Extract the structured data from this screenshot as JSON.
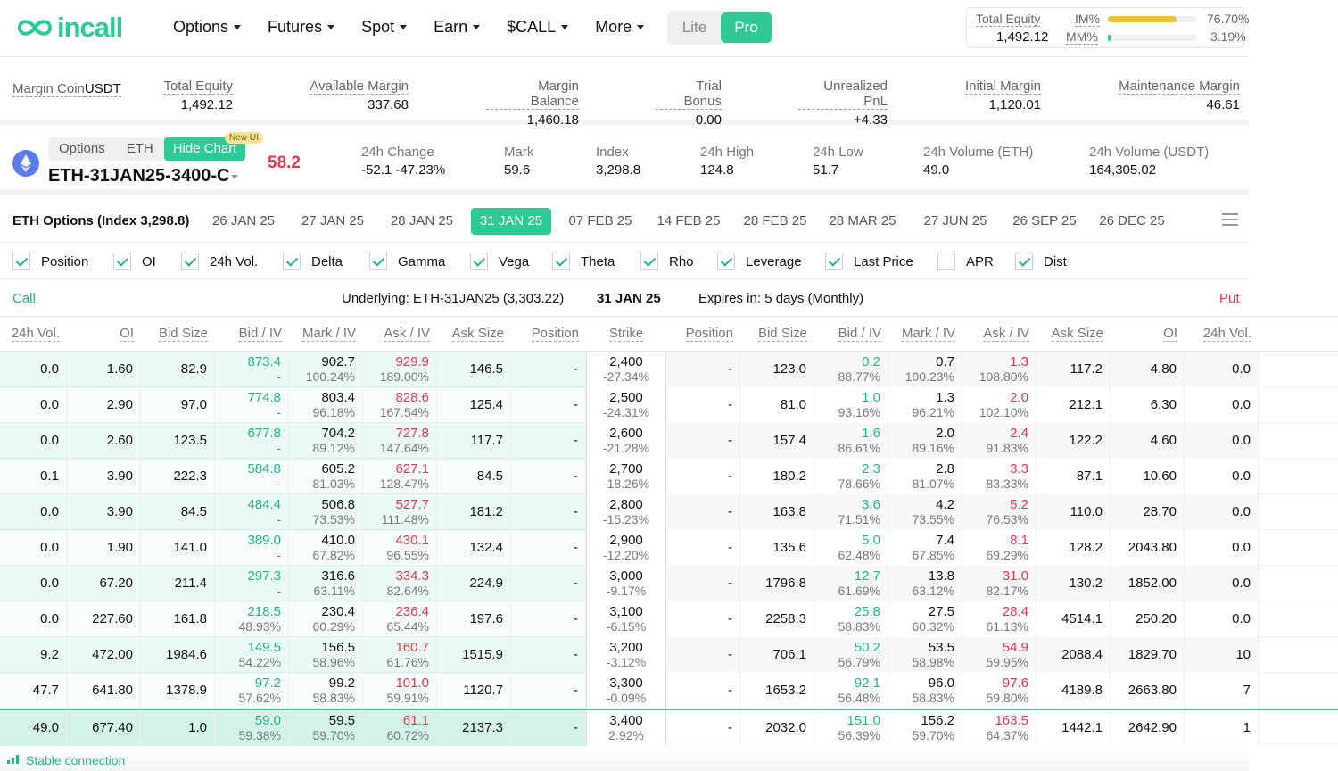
{
  "brand": {
    "logo_text": "incall",
    "accent": "#2ec997",
    "red": "#e03a4f"
  },
  "nav": [
    "Options",
    "Futures",
    "Spot",
    "Earn",
    "$CALL",
    "More"
  ],
  "mode": {
    "lite": "Lite",
    "pro": "Pro",
    "active": "Pro"
  },
  "equity_box": {
    "total_equity_label": "Total Equity",
    "total_equity": "1,492.12",
    "im_label": "IM%",
    "im_pct": "76.70%",
    "im_fraction": 0.767,
    "mm_label": "MM%",
    "mm_pct": "3.19%",
    "mm_fraction": 0.0319
  },
  "account": [
    {
      "label": "Margin Coin",
      "value": "USDT"
    },
    {
      "label": "Total Equity",
      "value": "1,492.12"
    },
    {
      "label": "Available Margin",
      "value": "337.68"
    },
    {
      "label": "Margin Balance",
      "value": "1,460.18"
    },
    {
      "label": "Trial Bonus",
      "value": "0.00"
    },
    {
      "label": "Unrealized PnL",
      "value": "+4.33"
    },
    {
      "label": "Initial Margin",
      "value": "1,120.01"
    },
    {
      "label": "Maintenance Margin",
      "value": "46.61"
    }
  ],
  "instrument": {
    "tabs": [
      "Options",
      "ETH",
      "Hide Chart"
    ],
    "badge": "New UI",
    "name": "ETH-31JAN25-3400-C",
    "last_price": "58.2",
    "stats": [
      {
        "label": "24h Change",
        "value": "-52.1 -47.23%"
      },
      {
        "label": "Mark",
        "value": "59.6"
      },
      {
        "label": "Index",
        "value": "3,298.8"
      },
      {
        "label": "24h High",
        "value": "124.8"
      },
      {
        "label": "24h Low",
        "value": "51.7"
      },
      {
        "label": "24h Volume (ETH)",
        "value": "49.0"
      },
      {
        "label": "24h Volume (USDT)",
        "value": "164,305.02"
      }
    ]
  },
  "expiry": {
    "title": "ETH Options (Index 3,298.8)",
    "dates": [
      "26 JAN 25",
      "27 JAN 25",
      "28 JAN 25",
      "31 JAN 25",
      "07 FEB 25",
      "14 FEB 25",
      "28 FEB 25",
      "28 MAR 25",
      "27 JUN 25",
      "26 SEP 25",
      "26 DEC 25"
    ],
    "selected": "31 JAN 25"
  },
  "columns": [
    {
      "label": "Position",
      "checked": true
    },
    {
      "label": "OI",
      "checked": true
    },
    {
      "label": "24h Vol.",
      "checked": true
    },
    {
      "label": "Delta",
      "checked": true
    },
    {
      "label": "Gamma",
      "checked": true
    },
    {
      "label": "Vega",
      "checked": true
    },
    {
      "label": "Theta",
      "checked": true
    },
    {
      "label": "Rho",
      "checked": true
    },
    {
      "label": "Leverage",
      "checked": true
    },
    {
      "label": "Last Price",
      "checked": true
    },
    {
      "label": "APR",
      "checked": false
    },
    {
      "label": "Dist",
      "checked": true
    }
  ],
  "info": {
    "call": "Call",
    "underlying": "Underlying: ETH-31JAN25 (3,303.22)",
    "expiry_date": "31 JAN 25",
    "expires_in": "Expires in: 5 days (Monthly)",
    "put": "Put"
  },
  "table_headers": [
    "24h Vol.",
    "OI",
    "Bid Size",
    "Bid / IV",
    "Mark / IV",
    "Ask / IV",
    "Ask Size",
    "Position",
    "Strike",
    "Position",
    "Bid Size",
    "Bid / IV",
    "Mark / IV",
    "Ask / IV",
    "Ask Size",
    "OI",
    "24h Vol."
  ],
  "rows": [
    {
      "c_vol": "0.0",
      "c_oi": "1.60",
      "c_bsz": "82.9",
      "c_bid": "873.4",
      "c_biv": "-",
      "c_mark": "902.7",
      "c_miv": "100.24%",
      "c_ask": "929.9",
      "c_aiv": "189.00%",
      "c_asz": "146.5",
      "c_pos": "-",
      "strike": "2,400",
      "dist": "-27.34%",
      "p_pos": "-",
      "p_bsz": "123.0",
      "p_bid": "0.2",
      "p_biv": "88.77%",
      "p_mark": "0.7",
      "p_miv": "100.23%",
      "p_ask": "1.3",
      "p_aiv": "108.80%",
      "p_asz": "117.2",
      "p_oi": "4.80",
      "p_vol": "0.0"
    },
    {
      "c_vol": "0.0",
      "c_oi": "2.90",
      "c_bsz": "97.0",
      "c_bid": "774.8",
      "c_biv": "-",
      "c_mark": "803.4",
      "c_miv": "96.18%",
      "c_ask": "828.6",
      "c_aiv": "167.54%",
      "c_asz": "125.4",
      "c_pos": "-",
      "strike": "2,500",
      "dist": "-24.31%",
      "p_pos": "-",
      "p_bsz": "81.0",
      "p_bid": "1.0",
      "p_biv": "93.16%",
      "p_mark": "1.3",
      "p_miv": "96.21%",
      "p_ask": "2.0",
      "p_aiv": "102.10%",
      "p_asz": "212.1",
      "p_oi": "6.30",
      "p_vol": "0.0"
    },
    {
      "c_vol": "0.0",
      "c_oi": "2.60",
      "c_bsz": "123.5",
      "c_bid": "677.8",
      "c_biv": "-",
      "c_mark": "704.2",
      "c_miv": "89.12%",
      "c_ask": "727.8",
      "c_aiv": "147.64%",
      "c_asz": "117.7",
      "c_pos": "-",
      "strike": "2,600",
      "dist": "-21.28%",
      "p_pos": "-",
      "p_bsz": "157.4",
      "p_bid": "1.6",
      "p_biv": "86.61%",
      "p_mark": "2.0",
      "p_miv": "89.16%",
      "p_ask": "2.4",
      "p_aiv": "91.83%",
      "p_asz": "122.2",
      "p_oi": "4.60",
      "p_vol": "0.0"
    },
    {
      "c_vol": "0.1",
      "c_oi": "3.90",
      "c_bsz": "222.3",
      "c_bid": "584.8",
      "c_biv": "-",
      "c_mark": "605.2",
      "c_miv": "81.03%",
      "c_ask": "627.1",
      "c_aiv": "128.47%",
      "c_asz": "84.5",
      "c_pos": "-",
      "strike": "2,700",
      "dist": "-18.26%",
      "p_pos": "-",
      "p_bsz": "180.2",
      "p_bid": "2.3",
      "p_biv": "78.66%",
      "p_mark": "2.8",
      "p_miv": "81.07%",
      "p_ask": "3.3",
      "p_aiv": "83.33%",
      "p_asz": "87.1",
      "p_oi": "10.60",
      "p_vol": "0.0"
    },
    {
      "c_vol": "0.0",
      "c_oi": "3.90",
      "c_bsz": "84.5",
      "c_bid": "484.4",
      "c_biv": "-",
      "c_mark": "506.8",
      "c_miv": "73.53%",
      "c_ask": "527.7",
      "c_aiv": "111.48%",
      "c_asz": "181.2",
      "c_pos": "-",
      "strike": "2,800",
      "dist": "-15.23%",
      "p_pos": "-",
      "p_bsz": "163.8",
      "p_bid": "3.6",
      "p_biv": "71.51%",
      "p_mark": "4.2",
      "p_miv": "73.55%",
      "p_ask": "5.2",
      "p_aiv": "76.53%",
      "p_asz": "110.0",
      "p_oi": "28.70",
      "p_vol": "0.0"
    },
    {
      "c_vol": "0.0",
      "c_oi": "1.90",
      "c_bsz": "141.0",
      "c_bid": "389.0",
      "c_biv": "-",
      "c_mark": "410.0",
      "c_miv": "67.82%",
      "c_ask": "430.1",
      "c_aiv": "96.55%",
      "c_asz": "132.4",
      "c_pos": "-",
      "strike": "2,900",
      "dist": "-12.20%",
      "p_pos": "-",
      "p_bsz": "135.6",
      "p_bid": "5.0",
      "p_biv": "62.48%",
      "p_mark": "7.4",
      "p_miv": "67.85%",
      "p_ask": "8.1",
      "p_aiv": "69.29%",
      "p_asz": "128.2",
      "p_oi": "2043.80",
      "p_vol": "0.0"
    },
    {
      "c_vol": "0.0",
      "c_oi": "67.20",
      "c_bsz": "211.4",
      "c_bid": "297.3",
      "c_biv": "-",
      "c_mark": "316.6",
      "c_miv": "63.11%",
      "c_ask": "334.3",
      "c_aiv": "82.64%",
      "c_asz": "224.9",
      "c_pos": "-",
      "strike": "3,000",
      "dist": "-9.17%",
      "p_pos": "-",
      "p_bsz": "1796.8",
      "p_bid": "12.7",
      "p_biv": "61.69%",
      "p_mark": "13.8",
      "p_miv": "63.12%",
      "p_ask": "31.0",
      "p_aiv": "82.17%",
      "p_asz": "130.2",
      "p_oi": "1852.00",
      "p_vol": "0.0"
    },
    {
      "c_vol": "0.0",
      "c_oi": "227.60",
      "c_bsz": "161.8",
      "c_bid": "218.5",
      "c_biv": "48.93%",
      "c_mark": "230.4",
      "c_miv": "60.29%",
      "c_ask": "236.4",
      "c_aiv": "65.44%",
      "c_asz": "197.6",
      "c_pos": "-",
      "strike": "3,100",
      "dist": "-6.15%",
      "p_pos": "-",
      "p_bsz": "2258.3",
      "p_bid": "25.8",
      "p_biv": "58.83%",
      "p_mark": "27.5",
      "p_miv": "60.32%",
      "p_ask": "28.4",
      "p_aiv": "61.13%",
      "p_asz": "4514.1",
      "p_oi": "250.20",
      "p_vol": "0.0"
    },
    {
      "c_vol": "9.2",
      "c_oi": "472.00",
      "c_bsz": "1984.6",
      "c_bid": "149.5",
      "c_biv": "54.22%",
      "c_mark": "156.5",
      "c_miv": "58.96%",
      "c_ask": "160.7",
      "c_aiv": "61.76%",
      "c_asz": "1515.9",
      "c_pos": "-",
      "strike": "3,200",
      "dist": "-3.12%",
      "p_pos": "-",
      "p_bsz": "706.1",
      "p_bid": "50.2",
      "p_biv": "56.79%",
      "p_mark": "53.5",
      "p_miv": "58.98%",
      "p_ask": "54.9",
      "p_aiv": "59.95%",
      "p_asz": "2088.4",
      "p_oi": "1829.70",
      "p_vol": "10"
    },
    {
      "c_vol": "47.7",
      "c_oi": "641.80",
      "c_bsz": "1378.9",
      "c_bid": "97.2",
      "c_biv": "57.62%",
      "c_mark": "99.2",
      "c_miv": "58.83%",
      "c_ask": "101.0",
      "c_aiv": "59.91%",
      "c_asz": "1120.7",
      "c_pos": "-",
      "strike": "3,300",
      "dist": "-0.09%",
      "p_pos": "-",
      "p_bsz": "1653.2",
      "p_bid": "92.1",
      "p_biv": "56.48%",
      "p_mark": "96.0",
      "p_miv": "58.83%",
      "p_ask": "97.6",
      "p_aiv": "59.80%",
      "p_asz": "4189.8",
      "p_oi": "2663.80",
      "p_vol": "7"
    },
    {
      "c_vol": "49.0",
      "c_oi": "677.40",
      "c_bsz": "1.0",
      "c_bid": "59.0",
      "c_biv": "59.38%",
      "c_mark": "59.5",
      "c_miv": "59.70%",
      "c_ask": "61.1",
      "c_aiv": "60.72%",
      "c_asz": "2137.3",
      "c_pos": "-",
      "strike": "3,400",
      "dist": "2.92%",
      "p_pos": "-",
      "p_bsz": "2032.0",
      "p_bid": "151.0",
      "p_biv": "56.39%",
      "p_mark": "156.2",
      "p_miv": "59.70%",
      "p_ask": "163.5",
      "p_aiv": "64.37%",
      "p_asz": "1442.1",
      "p_oi": "2642.90",
      "p_vol": "1"
    }
  ],
  "footer": {
    "status": "Stable connection"
  }
}
